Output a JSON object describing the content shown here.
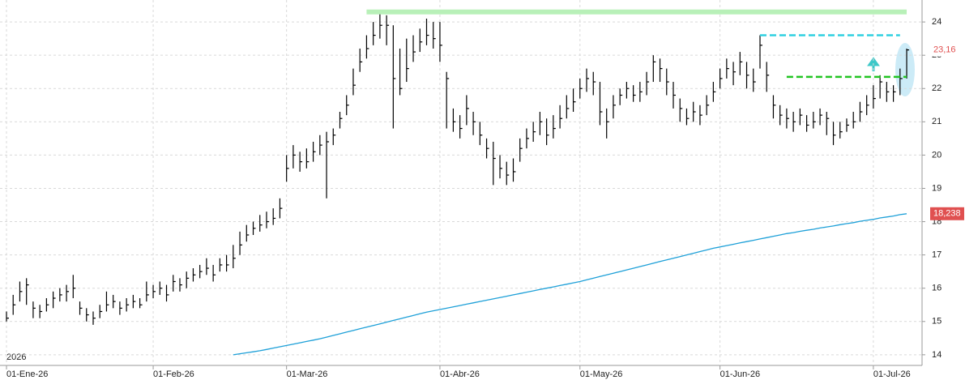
{
  "chart_data": {
    "type": "ohlc",
    "color": "#000000",
    "grid": true,
    "year_label": "2026",
    "categories": [
      "01-Ene-26",
      null,
      null,
      null,
      null,
      null,
      null,
      null,
      null,
      null,
      null,
      null,
      null,
      null,
      null,
      null,
      null,
      null,
      null,
      null,
      null,
      null,
      "01-Feb-26",
      null,
      null,
      null,
      null,
      null,
      null,
      null,
      null,
      null,
      null,
      null,
      null,
      null,
      null,
      null,
      null,
      null,
      null,
      null,
      "01-Mar-26",
      null,
      null,
      null,
      null,
      null,
      null,
      null,
      null,
      null,
      null,
      null,
      null,
      null,
      null,
      null,
      null,
      null,
      null,
      null,
      null,
      null,
      null,
      "01-Abr-26",
      null,
      null,
      null,
      null,
      null,
      null,
      null,
      null,
      null,
      null,
      null,
      null,
      null,
      null,
      null,
      null,
      null,
      null,
      null,
      null,
      "01-May-26",
      null,
      null,
      null,
      null,
      null,
      null,
      null,
      null,
      null,
      null,
      null,
      null,
      null,
      null,
      null,
      null,
      null,
      null,
      null,
      null,
      "01-Jun-26",
      null,
      null,
      null,
      null,
      null,
      null,
      null,
      null,
      null,
      null,
      null,
      null,
      null,
      null,
      null,
      null,
      null,
      null,
      null,
      null,
      null,
      null,
      "01-Jul-26",
      null,
      null,
      null,
      null,
      null
    ],
    "high": [
      15.3,
      15.8,
      16.2,
      16.3,
      15.6,
      15.5,
      15.7,
      15.9,
      16.0,
      16.1,
      16.4,
      15.6,
      15.4,
      15.3,
      15.5,
      15.9,
      15.8,
      15.6,
      15.7,
      15.8,
      15.7,
      16.2,
      16.1,
      16.2,
      16.1,
      16.4,
      16.3,
      16.5,
      16.6,
      16.7,
      16.9,
      16.7,
      16.9,
      17.0,
      17.3,
      17.7,
      17.9,
      18.0,
      18.2,
      18.3,
      18.4,
      18.7,
      20.0,
      20.3,
      20.1,
      20.2,
      20.4,
      20.6,
      20.7,
      20.8,
      21.3,
      21.8,
      22.6,
      23.2,
      23.6,
      24.0,
      24.3,
      24.2,
      23.9,
      23.2,
      23.5,
      23.6,
      23.8,
      24.1,
      24.0,
      24.0,
      22.5,
      21.4,
      21.2,
      21.8,
      21.3,
      21.0,
      20.5,
      20.4,
      20.0,
      19.8,
      19.9,
      20.5,
      20.8,
      21.0,
      21.3,
      21.1,
      21.2,
      21.5,
      21.8,
      22.0,
      22.3,
      22.6,
      22.5,
      22.2,
      21.4,
      21.8,
      22.0,
      22.2,
      22.1,
      22.2,
      22.5,
      23.0,
      22.9,
      22.6,
      22.2,
      21.7,
      21.4,
      21.6,
      21.5,
      21.8,
      22.2,
      22.6,
      22.9,
      22.8,
      23.1,
      22.8,
      22.6,
      23.6,
      22.8,
      21.8,
      21.5,
      21.4,
      21.3,
      21.4,
      21.2,
      21.3,
      21.4,
      21.3,
      21.0,
      21.0,
      21.1,
      21.3,
      21.6,
      21.8,
      22.1,
      22.4,
      22.2,
      22.1,
      22.6,
      23.2
    ],
    "low": [
      15.0,
      15.2,
      15.6,
      15.5,
      15.1,
      15.1,
      15.3,
      15.4,
      15.6,
      15.6,
      15.7,
      15.2,
      15.0,
      14.9,
      15.1,
      15.3,
      15.4,
      15.2,
      15.3,
      15.4,
      15.4,
      15.6,
      15.7,
      15.8,
      15.6,
      15.9,
      15.9,
      16.0,
      16.2,
      16.3,
      16.4,
      16.2,
      16.5,
      16.5,
      16.6,
      17.0,
      17.4,
      17.6,
      17.7,
      17.8,
      17.9,
      18.1,
      19.2,
      19.6,
      19.5,
      19.6,
      19.8,
      20.0,
      18.7,
      20.3,
      20.8,
      21.2,
      21.8,
      22.5,
      22.9,
      23.3,
      23.5,
      23.3,
      20.8,
      21.8,
      22.2,
      22.8,
      23.1,
      23.3,
      23.2,
      22.8,
      20.8,
      20.7,
      20.5,
      20.9,
      20.6,
      20.3,
      19.9,
      19.1,
      19.3,
      19.1,
      19.2,
      19.8,
      20.2,
      20.4,
      20.6,
      20.3,
      20.5,
      20.8,
      21.1,
      21.3,
      21.7,
      21.9,
      21.8,
      20.9,
      20.5,
      21.1,
      21.5,
      21.7,
      21.6,
      21.6,
      21.8,
      22.2,
      22.2,
      21.8,
      21.4,
      21.0,
      20.9,
      21.0,
      20.9,
      21.2,
      21.6,
      22.0,
      22.3,
      22.1,
      22.4,
      22.0,
      21.9,
      22.6,
      21.9,
      21.1,
      20.9,
      20.8,
      20.7,
      20.9,
      20.7,
      20.8,
      20.9,
      20.6,
      20.3,
      20.5,
      20.7,
      20.8,
      21.0,
      21.2,
      21.4,
      21.7,
      21.6,
      21.6,
      21.8,
      22.3
    ],
    "close": [
      15.1,
      15.5,
      15.9,
      16.1,
      15.4,
      15.3,
      15.5,
      15.7,
      15.8,
      15.9,
      16.0,
      15.4,
      15.2,
      15.1,
      15.3,
      15.5,
      15.6,
      15.4,
      15.5,
      15.6,
      15.5,
      15.8,
      15.9,
      16.0,
      15.8,
      16.2,
      16.1,
      16.3,
      16.4,
      16.5,
      16.6,
      16.4,
      16.7,
      16.7,
      16.9,
      17.3,
      17.6,
      17.8,
      17.9,
      18.0,
      18.1,
      18.4,
      19.6,
      20.0,
      19.8,
      19.8,
      20.1,
      20.3,
      20.4,
      20.6,
      21.1,
      21.5,
      22.1,
      22.8,
      23.2,
      23.6,
      23.9,
      23.9,
      22.3,
      22.0,
      22.6,
      23.1,
      23.4,
      23.6,
      23.5,
      23.3,
      22.3,
      21.0,
      20.8,
      21.4,
      21.0,
      20.6,
      20.2,
      19.9,
      19.6,
      19.4,
      19.5,
      20.2,
      20.5,
      20.7,
      21.0,
      20.6,
      20.8,
      21.1,
      21.4,
      21.6,
      22.0,
      22.3,
      22.2,
      21.3,
      21.0,
      21.5,
      21.8,
      22.0,
      21.8,
      21.9,
      22.2,
      22.8,
      22.6,
      22.2,
      21.8,
      21.4,
      21.1,
      21.3,
      21.2,
      21.5,
      21.9,
      22.3,
      22.6,
      22.5,
      22.8,
      22.4,
      22.2,
      23.3,
      22.4,
      21.5,
      21.2,
      21.1,
      21.0,
      21.2,
      20.9,
      21.0,
      21.2,
      21.1,
      20.6,
      20.7,
      20.9,
      21.0,
      21.3,
      21.5,
      21.7,
      22.2,
      21.9,
      21.9,
      22.3,
      23.16
    ],
    "moving_average": {
      "color": "#1ea0d8",
      "values": [
        null,
        null,
        null,
        null,
        null,
        null,
        null,
        null,
        null,
        null,
        null,
        null,
        null,
        null,
        null,
        null,
        null,
        null,
        null,
        null,
        null,
        null,
        null,
        null,
        null,
        null,
        null,
        null,
        null,
        null,
        null,
        null,
        null,
        null,
        14.0,
        14.03,
        14.06,
        14.09,
        14.12,
        14.16,
        14.2,
        14.24,
        14.28,
        14.32,
        14.36,
        14.4,
        14.44,
        14.48,
        14.53,
        14.58,
        14.63,
        14.68,
        14.73,
        14.78,
        14.83,
        14.88,
        14.93,
        14.98,
        15.03,
        15.08,
        15.13,
        15.18,
        15.23,
        15.28,
        15.32,
        15.36,
        15.4,
        15.44,
        15.48,
        15.52,
        15.56,
        15.6,
        15.64,
        15.68,
        15.72,
        15.76,
        15.8,
        15.84,
        15.88,
        15.92,
        15.96,
        16.0,
        16.04,
        16.08,
        16.12,
        16.16,
        16.2,
        16.25,
        16.3,
        16.35,
        16.4,
        16.45,
        16.5,
        16.55,
        16.6,
        16.65,
        16.7,
        16.75,
        16.8,
        16.85,
        16.9,
        16.95,
        17.0,
        17.05,
        17.1,
        17.15,
        17.2,
        17.24,
        17.28,
        17.32,
        17.36,
        17.4,
        17.44,
        17.48,
        17.52,
        17.56,
        17.6,
        17.64,
        17.67,
        17.71,
        17.74,
        17.77,
        17.81,
        17.84,
        17.87,
        17.91,
        17.94,
        17.97,
        18.01,
        18.04,
        18.07,
        18.11,
        18.14,
        18.17,
        18.21,
        18.238
      ]
    },
    "hlines": [
      {
        "value": 24.3,
        "from": 54,
        "to": 135,
        "color": "#b8f0b8",
        "width": 6,
        "dash": false
      },
      {
        "value": 23.6,
        "from": 113,
        "to": 134,
        "color": "#2fd0e0",
        "width": 2.5,
        "dash": true
      },
      {
        "value": 22.35,
        "from": 117,
        "to": 135,
        "color": "#22c422",
        "width": 2.5,
        "dash": true
      }
    ],
    "price_labels": [
      {
        "value": 23.16,
        "label": "23,16",
        "color": "#e05050",
        "background": "#ffffff"
      },
      {
        "value": 18.238,
        "label": "18,238",
        "color": "#ffffff",
        "background": "#e05050"
      }
    ],
    "ylim": [
      13.68,
      24.66
    ],
    "yticks": [
      14,
      15,
      16,
      17,
      18,
      19,
      20,
      21,
      22,
      23,
      24
    ]
  }
}
